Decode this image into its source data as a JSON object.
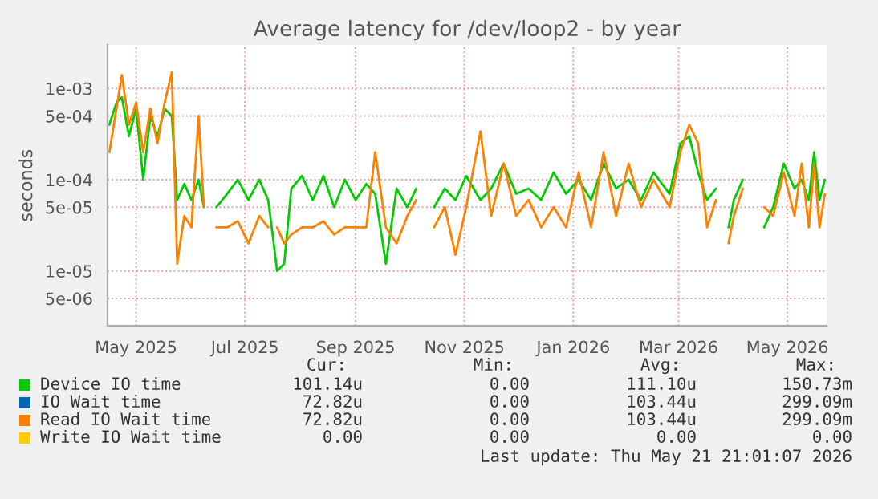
{
  "chart_data": {
    "type": "line",
    "title": "Average latency for /dev/loop2 - by year",
    "ylabel": "seconds",
    "x": [
      "2025-04-16",
      "2025-04-20",
      "2025-04-23",
      "2025-04-27",
      "2025-05-01",
      "2025-05-05",
      "2025-05-09",
      "2025-05-13",
      "2025-05-17",
      "2025-05-21",
      "2025-05-24",
      "2025-05-28",
      "2025-06-01",
      "2025-06-05",
      "2025-06-08",
      "2025-06-11",
      "2025-06-15",
      "2025-06-21",
      "2025-06-27",
      "2025-07-03",
      "2025-07-09",
      "2025-07-14",
      "2025-07-16",
      "2025-07-19",
      "2025-07-23",
      "2025-07-27",
      "2025-08-02",
      "2025-08-08",
      "2025-08-14",
      "2025-08-20",
      "2025-08-26",
      "2025-09-01",
      "2025-09-07",
      "2025-09-12",
      "2025-09-18",
      "2025-09-24",
      "2025-09-30",
      "2025-10-05",
      "2025-10-10",
      "2025-10-15",
      "2025-10-21",
      "2025-10-27",
      "2025-11-02",
      "2025-11-10",
      "2025-11-16",
      "2025-11-23",
      "2025-11-30",
      "2025-12-07",
      "2025-12-14",
      "2025-12-21",
      "2025-12-28",
      "2026-01-04",
      "2026-01-11",
      "2026-01-18",
      "2026-01-25",
      "2026-02-01",
      "2026-02-08",
      "2026-02-15",
      "2026-02-24",
      "2026-03-02",
      "2026-03-07",
      "2026-03-12",
      "2026-03-17",
      "2026-03-22",
      "2026-03-25",
      "2026-03-29",
      "2026-04-01",
      "2026-04-06",
      "2026-04-13",
      "2026-04-18",
      "2026-04-23",
      "2026-04-29",
      "2026-05-05",
      "2026-05-09",
      "2026-05-13",
      "2026-05-16",
      "2026-05-19",
      "2026-05-22"
    ],
    "series": [
      {
        "name": "Device IO time",
        "color": "#00cc00",
        "values": [
          0.0004,
          0.0007,
          0.0008,
          0.0003,
          0.0006,
          0.0001,
          0.0005,
          0.0003,
          0.0006,
          0.0005,
          6e-05,
          9e-05,
          6e-05,
          0.0001,
          5e-05,
          null,
          5e-05,
          7e-05,
          0.0001,
          6e-05,
          0.0001,
          6e-05,
          3e-05,
          1e-05,
          1.2e-05,
          8e-05,
          0.00011,
          6e-05,
          0.00011,
          5e-05,
          0.0001,
          6e-05,
          9e-05,
          7e-05,
          1.2e-05,
          8e-05,
          5e-05,
          8e-05,
          null,
          5e-05,
          8e-05,
          6e-05,
          0.00011,
          6e-05,
          8e-05,
          0.00015,
          7e-05,
          8e-05,
          6e-05,
          0.00012,
          7e-05,
          0.0001,
          6e-05,
          0.00015,
          8e-05,
          0.0001,
          6e-05,
          0.00012,
          7e-05,
          0.00025,
          0.0003,
          0.00012,
          6e-05,
          8e-05,
          null,
          3e-05,
          6e-05,
          0.0001,
          null,
          3e-05,
          5e-05,
          0.00015,
          8e-05,
          0.0001,
          6e-05,
          0.0002,
          6e-05,
          0.0001
        ]
      },
      {
        "name": "IO Wait time",
        "color": "#0066b3",
        "values": [
          null,
          null,
          null,
          null,
          null,
          null,
          null,
          null,
          null,
          null,
          null,
          null,
          null,
          null,
          null,
          null,
          null,
          null,
          null,
          null,
          null,
          null,
          null,
          null,
          null,
          null,
          null,
          null,
          null,
          null,
          null,
          null,
          null,
          null,
          null,
          null,
          null,
          null,
          null,
          null,
          null,
          null,
          null,
          null,
          null,
          null,
          null,
          null,
          null,
          null,
          null,
          null,
          null,
          null,
          null,
          null,
          null,
          null,
          null,
          null,
          null,
          null,
          null,
          null,
          null,
          null,
          null,
          null,
          null,
          null,
          null,
          null,
          null,
          null,
          null,
          null,
          null,
          null
        ]
      },
      {
        "name": "Read IO Wait time",
        "color": "#ff8000",
        "values": [
          0.0002,
          0.0006,
          0.0014,
          0.0004,
          0.0007,
          0.0002,
          0.0006,
          0.00025,
          0.0007,
          0.0015,
          1.2e-05,
          4e-05,
          3e-05,
          0.0005,
          5e-05,
          null,
          3e-05,
          3e-05,
          3.5e-05,
          2e-05,
          4e-05,
          3e-05,
          null,
          3e-05,
          2e-05,
          2.5e-05,
          3e-05,
          3e-05,
          3.5e-05,
          2.5e-05,
          3e-05,
          3e-05,
          3e-05,
          0.0002,
          3e-05,
          2e-05,
          4e-05,
          6e-05,
          null,
          3e-05,
          5e-05,
          1.5e-05,
          5e-05,
          0.00034,
          4e-05,
          0.00015,
          4e-05,
          6e-05,
          3e-05,
          5e-05,
          3e-05,
          0.00012,
          3e-05,
          0.0002,
          4e-05,
          0.00015,
          5e-05,
          0.0001,
          5e-05,
          0.0002,
          0.0004,
          0.00025,
          3e-05,
          6e-05,
          null,
          2e-05,
          4e-05,
          8e-05,
          null,
          5e-05,
          4e-05,
          0.00012,
          4e-05,
          0.00015,
          3e-05,
          0.00015,
          3e-05,
          7e-05
        ]
      },
      {
        "name": "Write IO Wait time",
        "color": "#ffcc00",
        "values": [
          null,
          null,
          null,
          null,
          null,
          null,
          null,
          null,
          null,
          null,
          null,
          null,
          null,
          null,
          null,
          null,
          null,
          null,
          null,
          null,
          null,
          null,
          null,
          null,
          null,
          null,
          null,
          null,
          null,
          null,
          null,
          null,
          null,
          null,
          null,
          null,
          null,
          null,
          null,
          null,
          null,
          null,
          null,
          null,
          null,
          null,
          null,
          null,
          null,
          null,
          null,
          null,
          null,
          null,
          null,
          null,
          null,
          null,
          null,
          null,
          null,
          null,
          null,
          null,
          null,
          null,
          null,
          null,
          null,
          null,
          null,
          null,
          null,
          null,
          null,
          null,
          null,
          null
        ]
      }
    ],
    "log": true,
    "xlim": [
      "2025-04-15",
      "2026-05-23"
    ],
    "xticks": [
      {
        "value": "2025-05-01",
        "label": "May 2025"
      },
      {
        "value": "2025-07-01",
        "label": "Jul 2025"
      },
      {
        "value": "2025-09-01",
        "label": "Sep 2025"
      },
      {
        "value": "2025-11-01",
        "label": "Nov 2025"
      },
      {
        "value": "2026-01-01",
        "label": "Jan 2026"
      },
      {
        "value": "2026-03-01",
        "label": "Mar 2026"
      },
      {
        "value": "2026-05-01",
        "label": "May 2026"
      }
    ],
    "ylim": [
      2.5e-06,
      0.003
    ],
    "yticks": [
      {
        "value": 5e-06,
        "label": "5e-06"
      },
      {
        "value": 1e-05,
        "label": "1e-05"
      },
      {
        "value": 5e-05,
        "label": "5e-05"
      },
      {
        "value": 0.0001,
        "label": "1e-04"
      },
      {
        "value": 0.0005,
        "label": "5e-04"
      },
      {
        "value": 0.001,
        "label": "1e-03"
      }
    ],
    "grid": true,
    "legend": "bottom",
    "annotations": [
      "Cur:",
      "Min:",
      "Avg:",
      "Max:",
      "101.14u",
      "0.00",
      "111.10u",
      "150.73m",
      "72.82u",
      "0.00",
      "103.44u",
      "299.09m",
      "72.82u",
      "0.00",
      "103.44u",
      "299.09m",
      "0.00",
      "0.00",
      "0.00",
      "0.00",
      "Last update: Thu May 21 21:01:07 2026"
    ]
  }
}
